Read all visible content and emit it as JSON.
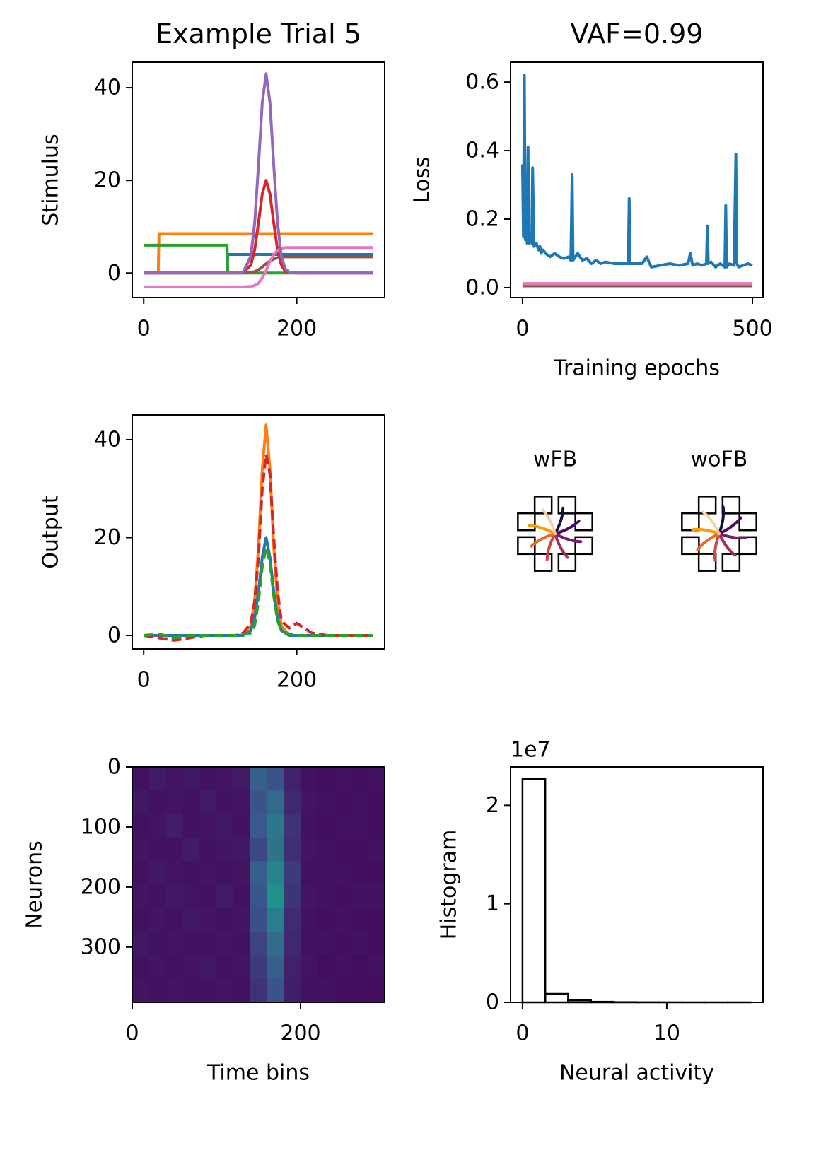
{
  "chart_data": [
    {
      "type": "line",
      "title": "Example Trial 5",
      "ylabel": "Stimulus",
      "x": [
        0,
        10,
        19,
        20,
        30,
        40,
        50,
        60,
        70,
        80,
        90,
        100,
        109,
        110,
        120,
        130,
        140,
        145,
        150,
        155,
        160,
        165,
        170,
        175,
        180,
        185,
        190,
        200,
        210,
        220,
        230,
        240,
        250,
        260,
        270,
        280,
        290,
        300
      ],
      "series": [
        {
          "color": "#1f77b4",
          "values": [
            0,
            0,
            0,
            0,
            0,
            0,
            0,
            0,
            0,
            0,
            0,
            0,
            0,
            4,
            4,
            4,
            4,
            4,
            4,
            4,
            4,
            4,
            4,
            4,
            4,
            4,
            4,
            4,
            4,
            4,
            4,
            4,
            4,
            4,
            4,
            4,
            4,
            4
          ]
        },
        {
          "color": "#ff7f0e",
          "values": [
            0,
            0,
            0,
            8.5,
            8.5,
            8.5,
            8.5,
            8.5,
            8.5,
            8.5,
            8.5,
            8.5,
            8.5,
            8.5,
            8.5,
            8.5,
            8.5,
            8.5,
            8.5,
            8.5,
            8.5,
            8.5,
            8.5,
            8.5,
            8.5,
            8.5,
            8.5,
            8.5,
            8.5,
            8.5,
            8.5,
            8.5,
            8.5,
            8.5,
            8.5,
            8.5,
            8.5,
            8.5
          ]
        },
        {
          "color": "#2ca02c",
          "values": [
            6,
            6,
            6,
            6,
            6,
            6,
            6,
            6,
            6,
            6,
            6,
            6,
            6,
            0,
            0,
            0,
            0,
            0,
            0,
            0,
            0,
            0,
            0,
            0,
            0,
            0,
            0,
            0,
            0,
            0,
            0,
            0,
            0,
            0,
            0,
            0,
            0,
            0
          ]
        },
        {
          "color": "#d62728",
          "values": [
            0,
            0,
            0,
            0,
            0,
            0,
            0,
            0,
            0,
            0,
            0,
            0,
            0,
            0,
            0,
            0.1,
            1.7,
            5,
            10.8,
            17.1,
            20,
            17.1,
            10.8,
            5,
            1.7,
            0.4,
            0.1,
            0,
            0,
            0,
            0,
            0,
            0,
            0,
            0,
            0,
            0,
            0
          ]
        },
        {
          "color": "#8c564b",
          "values": [
            0,
            0,
            0,
            0,
            0,
            0,
            0,
            0,
            0,
            0,
            0,
            0,
            0,
            0,
            0,
            0,
            0.1,
            0.3,
            0.7,
            1.3,
            2.0,
            2.6,
            3.0,
            3.3,
            3.4,
            3.5,
            3.5,
            3.5,
            3.5,
            3.5,
            3.5,
            3.5,
            3.5,
            3.5,
            3.5,
            3.5,
            3.5,
            3.5
          ]
        },
        {
          "color": "#e377c2",
          "values": [
            -3,
            -3,
            -3,
            -3,
            -3,
            -3,
            -3,
            -3,
            -3,
            -3,
            -3,
            -3,
            -3,
            -3,
            -3,
            -3,
            -2.9,
            -2.7,
            -2.2,
            -1,
            0.5,
            2.5,
            4,
            4.9,
            5.3,
            5.5,
            5.5,
            5.5,
            5.5,
            5.5,
            5.5,
            5.5,
            5.5,
            5.5,
            5.5,
            5.5,
            5.5,
            5.5
          ]
        },
        {
          "color": "#9467bd",
          "values": [
            0,
            0,
            0,
            0,
            0,
            0,
            0,
            0,
            0,
            0,
            0,
            0,
            0,
            0,
            0,
            0.2,
            3.6,
            10.7,
            23.2,
            36.8,
            43,
            36.8,
            23.2,
            10.7,
            3.6,
            0.9,
            0.2,
            0,
            0,
            0,
            0,
            0,
            0,
            0,
            0,
            0,
            0,
            0
          ]
        }
      ],
      "xlim": [
        -15,
        315
      ],
      "xticks": [
        0,
        200
      ],
      "ylim": [
        -5.3,
        45.5
      ],
      "yticks": [
        0,
        20,
        40
      ]
    },
    {
      "type": "line",
      "title": "VAF=0.99",
      "ylabel": "Loss",
      "xlabel": "Training epochs",
      "series": [
        {
          "color": "#8c564b",
          "x": [
            0,
            500
          ],
          "values": [
            0.005,
            0.005
          ]
        },
        {
          "color": "#7f7f7f",
          "x": [
            0,
            500
          ],
          "values": [
            0.008,
            0.008
          ]
        },
        {
          "color": "#e377c2",
          "x": [
            0,
            500
          ],
          "values": [
            0.012,
            0.012
          ]
        },
        {
          "color": "#1f77b4",
          "x": [
            0,
            2,
            4,
            6,
            8,
            10,
            12,
            14,
            16,
            20,
            22,
            25,
            30,
            35,
            38,
            40,
            45,
            50,
            60,
            70,
            80,
            90,
            100,
            105,
            108,
            110,
            120,
            130,
            140,
            150,
            160,
            170,
            180,
            200,
            220,
            230,
            232,
            234,
            240,
            260,
            270,
            280,
            300,
            320,
            340,
            360,
            365,
            370,
            380,
            390,
            400,
            402,
            404,
            410,
            420,
            430,
            440,
            442,
            444,
            450,
            460,
            464,
            466,
            470,
            480,
            490,
            500
          ],
          "values": [
            0.36,
            0.15,
            0.62,
            0.14,
            0.2,
            0.13,
            0.41,
            0.13,
            0.15,
            0.13,
            0.35,
            0.12,
            0.13,
            0.11,
            0.12,
            0.1,
            0.11,
            0.1,
            0.09,
            0.1,
            0.09,
            0.085,
            0.09,
            0.08,
            0.33,
            0.08,
            0.1,
            0.08,
            0.085,
            0.07,
            0.08,
            0.07,
            0.075,
            0.07,
            0.07,
            0.07,
            0.26,
            0.07,
            0.07,
            0.07,
            0.09,
            0.06,
            0.065,
            0.07,
            0.065,
            0.07,
            0.1,
            0.065,
            0.07,
            0.065,
            0.07,
            0.18,
            0.07,
            0.075,
            0.06,
            0.07,
            0.06,
            0.24,
            0.06,
            0.07,
            0.065,
            0.39,
            0.07,
            0.06,
            0.065,
            0.07,
            0.065
          ]
        }
      ],
      "xlim": [
        -26,
        523
      ],
      "xticks": [
        0,
        500
      ],
      "ylim": [
        -0.029,
        0.658
      ],
      "yticks": [
        {
          "value": 0,
          "label": "0.0"
        },
        0.2,
        0.4,
        0.6
      ]
    },
    {
      "type": "line",
      "ylabel": "Output",
      "x": [
        0,
        20,
        40,
        60,
        80,
        100,
        120,
        130,
        140,
        145,
        150,
        155,
        160,
        165,
        170,
        175,
        180,
        190,
        200,
        210,
        220,
        240,
        260,
        280,
        300
      ],
      "series": [
        {
          "color": "#ff7f0e",
          "values": [
            0,
            0,
            0,
            0,
            0,
            0,
            0,
            0.1,
            2,
            7,
            18,
            34,
            43,
            34,
            18,
            7,
            2,
            0,
            0,
            0,
            0,
            0,
            0,
            0,
            0
          ]
        },
        {
          "color": "#1f77b4",
          "values": [
            0,
            0,
            0,
            0,
            0,
            0,
            0,
            0,
            1,
            3.5,
            9,
            16,
            20,
            16,
            9,
            3.5,
            1,
            0,
            0,
            0,
            0,
            0,
            0,
            0,
            0
          ]
        },
        {
          "color": "#d62728",
          "dashed": true,
          "values": [
            0,
            -0.5,
            -1,
            -0.5,
            0,
            0,
            0,
            0.5,
            2.5,
            7,
            16,
            30,
            37,
            33,
            20,
            9,
            3,
            1.5,
            2.5,
            1.5,
            0.5,
            0,
            0,
            0,
            0
          ]
        },
        {
          "color": "#2ca02c",
          "dashed": true,
          "values": [
            0,
            0.3,
            -0.5,
            0,
            0,
            0,
            0,
            0.2,
            0.5,
            2,
            7,
            14,
            18,
            15,
            8,
            3,
            1,
            0.3,
            0,
            0,
            0,
            0,
            0,
            0,
            0
          ]
        }
      ],
      "xlim": [
        -15,
        315
      ],
      "xticks": [
        0,
        200
      ],
      "ylim": [
        -2.74,
        45.05
      ],
      "yticks": [
        0,
        20,
        40
      ]
    },
    {
      "type": "radial",
      "labels": [
        "wFB",
        "woFB"
      ]
    },
    {
      "type": "heatmap",
      "ylabel": "Neurons",
      "xlabel": "Time bins",
      "colormap": "viridis",
      "clim": [
        0,
        1
      ],
      "values": [
        [
          0.05,
          0.08,
          0.06,
          0.07,
          0.05,
          0.06,
          0.08,
          0.3,
          0.25,
          0.1,
          0.05,
          0.04,
          0.05,
          0.04,
          0.05
        ],
        [
          0.07,
          0.05,
          0.06,
          0.05,
          0.08,
          0.05,
          0.06,
          0.25,
          0.35,
          0.12,
          0.06,
          0.05,
          0.04,
          0.05,
          0.04
        ],
        [
          0.05,
          0.06,
          0.09,
          0.05,
          0.06,
          0.07,
          0.05,
          0.28,
          0.4,
          0.15,
          0.05,
          0.04,
          0.05,
          0.05,
          0.04
        ],
        [
          0.06,
          0.05,
          0.05,
          0.08,
          0.05,
          0.06,
          0.07,
          0.22,
          0.38,
          0.14,
          0.06,
          0.05,
          0.04,
          0.04,
          0.05
        ],
        [
          0.05,
          0.07,
          0.06,
          0.05,
          0.06,
          0.05,
          0.06,
          0.3,
          0.45,
          0.18,
          0.05,
          0.05,
          0.05,
          0.04,
          0.04
        ],
        [
          0.06,
          0.05,
          0.07,
          0.06,
          0.05,
          0.08,
          0.05,
          0.26,
          0.5,
          0.16,
          0.06,
          0.05,
          0.04,
          0.05,
          0.05
        ],
        [
          0.05,
          0.06,
          0.05,
          0.07,
          0.06,
          0.05,
          0.06,
          0.24,
          0.42,
          0.13,
          0.05,
          0.04,
          0.05,
          0.04,
          0.04
        ],
        [
          0.07,
          0.05,
          0.06,
          0.05,
          0.05,
          0.06,
          0.05,
          0.2,
          0.36,
          0.12,
          0.05,
          0.05,
          0.04,
          0.05,
          0.04
        ],
        [
          0.05,
          0.06,
          0.05,
          0.06,
          0.07,
          0.05,
          0.06,
          0.18,
          0.3,
          0.1,
          0.06,
          0.04,
          0.05,
          0.04,
          0.05
        ],
        [
          0.06,
          0.05,
          0.06,
          0.05,
          0.05,
          0.06,
          0.05,
          0.15,
          0.25,
          0.09,
          0.05,
          0.05,
          0.04,
          0.04,
          0.04
        ]
      ],
      "xlim": [
        0,
        300
      ],
      "xticks": [
        0,
        200
      ],
      "ylim": [
        392,
        0
      ],
      "yticks": [
        0,
        100,
        200,
        300
      ]
    },
    {
      "type": "histogram",
      "ylabel": "Histogram",
      "xlabel": "Neural activity",
      "offset_label": "1e7",
      "bins": [
        0,
        1.58,
        3.16,
        4.74,
        6.32,
        7.9,
        9.48,
        11.06,
        12.64,
        14.22,
        15.8
      ],
      "counts": [
        22700000,
        860000,
        200000,
        60000,
        20000,
        10000,
        5000,
        2000,
        1000,
        500
      ],
      "color": "#000000",
      "xlim": [
        -0.83,
        16.67
      ],
      "xticks": [
        0,
        10
      ],
      "ylim": [
        0,
        23900000
      ],
      "yticks": [
        0,
        {
          "value": 10000000,
          "label": "1"
        },
        {
          "value": 20000000,
          "label": "2"
        }
      ]
    }
  ]
}
